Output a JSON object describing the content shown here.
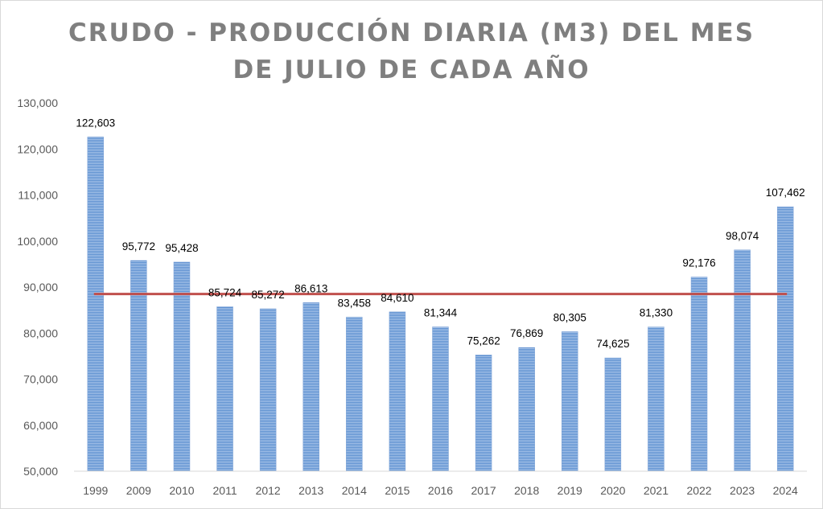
{
  "chart_data": {
    "type": "bar",
    "title_line1": "CRUDO - PRODUCCIÓN DIARIA (M3) DEL MES",
    "title_line2": "DE JULIO DE CADA AÑO",
    "categories": [
      "1999",
      "2009",
      "2010",
      "2011",
      "2012",
      "2013",
      "2014",
      "2015",
      "2016",
      "2017",
      "2018",
      "2019",
      "2020",
      "2021",
      "2022",
      "2023",
      "2024"
    ],
    "values": [
      122603,
      95772,
      95428,
      85724,
      85272,
      86613,
      83458,
      84610,
      81344,
      75262,
      76869,
      80305,
      74625,
      81330,
      92176,
      98074,
      107462
    ],
    "data_labels": [
      "122,603",
      "95,772",
      "95,428",
      "85,724",
      "85,272",
      "86,613",
      "83,458",
      "84,610",
      "81,344",
      "75,262",
      "76,869",
      "80,305",
      "74,625",
      "81,330",
      "92,176",
      "98,074",
      "107,462"
    ],
    "ylim": [
      50000,
      130000
    ],
    "y_ticks": [
      50000,
      60000,
      70000,
      80000,
      90000,
      100000,
      110000,
      120000,
      130000
    ],
    "y_tick_labels": [
      "50,000",
      "60,000",
      "70,000",
      "80,000",
      "90,000",
      "100,000",
      "110,000",
      "120,000",
      "130,000"
    ],
    "reference_line": 88500,
    "xlabel": "",
    "ylabel": "",
    "grid": false,
    "colors": {
      "bar": "#5b8fd0",
      "bar_stripe": "#9dbce6",
      "reference_line": "#c0504d",
      "axis": "#d9d9d9",
      "title": "#7f7f7f"
    }
  }
}
